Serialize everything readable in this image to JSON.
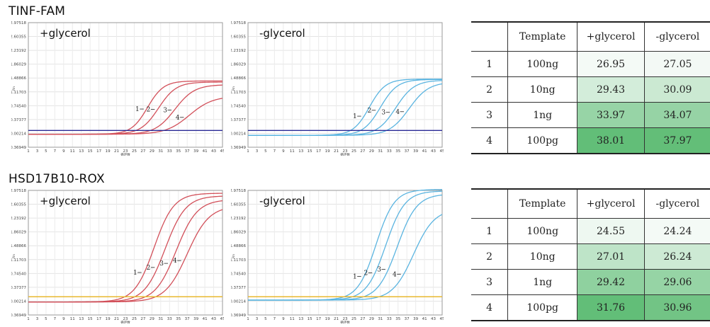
{
  "sections": [
    {
      "title": "TINF-FAM"
    },
    {
      "title": "HSD17B10-ROX"
    }
  ],
  "chart_data": [
    {
      "type": "line",
      "panel": "TINF-FAM +glycerol",
      "label": "+glycerol",
      "curve_color": "#d2505a",
      "threshold_color": "#2a2a96",
      "threshold": 0.08,
      "y_ticks": [
        "2.97518",
        "2.60355",
        "2.23192",
        "1.86029",
        "1.48866",
        "1.11703",
        "0.74540",
        "0.37377",
        "0.00214",
        "-0.36949"
      ],
      "x_ticks": [
        "1",
        "3",
        "5",
        "7",
        "9",
        "11",
        "13",
        "15",
        "17",
        "19",
        "21",
        "23",
        "25",
        "27",
        "29",
        "31",
        "33",
        "35",
        "37",
        "39",
        "41",
        "43",
        "45"
      ],
      "xlabel": "循环数",
      "ylabel": "Rn",
      "xlim": [
        1,
        45
      ],
      "ylim": [
        -0.36949,
        2.97518
      ],
      "series": [
        {
          "label": "1",
          "ct": 26.95,
          "baseline": -0.02,
          "plateau": 1.43,
          "k": 0.55,
          "mid": 28.0,
          "label_x": 26.5
        },
        {
          "label": "2",
          "ct": 29.43,
          "baseline": -0.02,
          "plateau": 1.4,
          "k": 0.5,
          "mid": 30.5,
          "label_x": 29.0
        },
        {
          "label": "3",
          "ct": 33.97,
          "baseline": -0.02,
          "plateau": 1.33,
          "k": 0.45,
          "mid": 34.2,
          "label_x": 32.8
        },
        {
          "label": "4",
          "ct": 38.01,
          "baseline": -0.02,
          "plateau": 1.02,
          "k": 0.38,
          "mid": 37.5,
          "label_x": 35.6
        }
      ]
    },
    {
      "type": "line",
      "panel": "TINF-FAM -glycerol",
      "label": "-glycerol",
      "curve_color": "#5ab4e0",
      "threshold_color": "#2a2a96",
      "threshold": 0.08,
      "y_ticks": [
        "2.97518",
        "2.60355",
        "2.23192",
        "1.86029",
        "1.48866",
        "1.11703",
        "0.74540",
        "0.37377",
        "0.00214",
        "-0.36949"
      ],
      "x_ticks": [
        "1",
        "3",
        "5",
        "7",
        "9",
        "11",
        "13",
        "15",
        "17",
        "19",
        "21",
        "23",
        "25",
        "27",
        "29",
        "31",
        "33",
        "35",
        "37",
        "39",
        "41",
        "43",
        "45"
      ],
      "xlabel": "循环数",
      "ylabel": "Rn",
      "xlim": [
        1,
        45
      ],
      "ylim": [
        -0.36949,
        2.97518
      ],
      "series": [
        {
          "label": "1",
          "ct": 27.05,
          "baseline": -0.05,
          "plateau": 1.51,
          "k": 0.55,
          "mid": 28.5,
          "label_x": 26.0
        },
        {
          "label": "2",
          "ct": 30.09,
          "baseline": -0.05,
          "plateau": 1.5,
          "k": 0.52,
          "mid": 31.0,
          "label_x": 29.3
        },
        {
          "label": "3",
          "ct": 34.07,
          "baseline": -0.05,
          "plateau": 1.48,
          "k": 0.48,
          "mid": 34.5,
          "label_x": 32.5
        },
        {
          "label": "4",
          "ct": 37.97,
          "baseline": -0.05,
          "plateau": 1.43,
          "k": 0.45,
          "mid": 37.5,
          "label_x": 35.7
        }
      ]
    },
    {
      "type": "line",
      "panel": "HSD17B10-ROX +glycerol",
      "label": "+glycerol",
      "curve_color": "#d2505a",
      "threshold_color": "#e8b830",
      "threshold": 0.12,
      "y_ticks": [
        "2.97518",
        "2.60355",
        "2.23192",
        "1.86029",
        "1.48866",
        "1.11703",
        "0.74540",
        "0.37377",
        "0.00214",
        "-0.36949"
      ],
      "x_ticks": [
        "1",
        "3",
        "5",
        "7",
        "9",
        "11",
        "13",
        "15",
        "17",
        "19",
        "21",
        "23",
        "25",
        "27",
        "29",
        "31",
        "33",
        "35",
        "37",
        "39",
        "41",
        "43",
        "45"
      ],
      "xlabel": "循环数",
      "ylabel": "Rn",
      "xlim": [
        1,
        45
      ],
      "ylim": [
        -0.36949,
        2.97518
      ],
      "series": [
        {
          "label": "1",
          "ct": 24.55,
          "baseline": -0.02,
          "plateau": 2.92,
          "k": 0.45,
          "mid": 29.5,
          "label_x": 26.0
        },
        {
          "label": "2",
          "ct": 27.01,
          "baseline": -0.02,
          "plateau": 2.85,
          "k": 0.43,
          "mid": 32.0,
          "label_x": 29.0
        },
        {
          "label": "3",
          "ct": 29.42,
          "baseline": -0.02,
          "plateau": 2.75,
          "k": 0.42,
          "mid": 34.5,
          "label_x": 32.0
        },
        {
          "label": "4",
          "ct": 31.76,
          "baseline": -0.02,
          "plateau": 2.58,
          "k": 0.4,
          "mid": 37.0,
          "label_x": 35.0
        }
      ]
    },
    {
      "type": "line",
      "panel": "HSD17B10-ROX -glycerol",
      "label": "-glycerol",
      "curve_color": "#5ab4e0",
      "threshold_color": "#e8b830",
      "threshold": 0.12,
      "y_ticks": [
        "2.97518",
        "2.60355",
        "2.23192",
        "1.86029",
        "1.48866",
        "1.11703",
        "0.74540",
        "0.37377",
        "0.00214",
        "-0.36949"
      ],
      "x_ticks": [
        "1",
        "3",
        "5",
        "7",
        "9",
        "11",
        "13",
        "15",
        "17",
        "19",
        "21",
        "23",
        "25",
        "27",
        "29",
        "31",
        "33",
        "35",
        "37",
        "39",
        "41",
        "43",
        "45"
      ],
      "xlabel": "循环数",
      "ylabel": "Rn",
      "xlim": [
        1,
        45
      ],
      "ylim": [
        -0.36949,
        2.97518
      ],
      "series": [
        {
          "label": "1",
          "ct": 24.24,
          "baseline": 0.03,
          "plateau": 2.97,
          "k": 0.48,
          "mid": 30.0,
          "label_x": 26.0
        },
        {
          "label": "2",
          "ct": 26.24,
          "baseline": 0.03,
          "plateau": 2.93,
          "k": 0.46,
          "mid": 32.2,
          "label_x": 28.5
        },
        {
          "label": "3",
          "ct": 29.06,
          "baseline": 0.03,
          "plateau": 2.85,
          "k": 0.45,
          "mid": 34.8,
          "label_x": 31.5
        },
        {
          "label": "4",
          "ct": 30.96,
          "baseline": 0.03,
          "plateau": 2.45,
          "k": 0.42,
          "mid": 38.5,
          "label_x": 35.0
        }
      ]
    },
    {
      "type": "table",
      "panel": "TINF-FAM Ct table",
      "headers": [
        "",
        "Template",
        "+glycerol",
        "-glycerol"
      ],
      "rows": [
        [
          "1",
          "100ng",
          "26.95",
          "27.05"
        ],
        [
          "2",
          "10ng",
          "29.43",
          "30.09"
        ],
        [
          "3",
          "1ng",
          "33.97",
          "34.07"
        ],
        [
          "4",
          "100pg",
          "38.01",
          "37.97"
        ]
      ],
      "min": 26.95,
      "max": 38.01
    },
    {
      "type": "table",
      "panel": "HSD17B10-ROX Ct table",
      "headers": [
        "",
        "Template",
        "+glycerol",
        "-glycerol"
      ],
      "rows": [
        [
          "1",
          "100ng",
          "24.55",
          "24.24"
        ],
        [
          "2",
          "10ng",
          "27.01",
          "26.24"
        ],
        [
          "3",
          "1ng",
          "29.42",
          "29.06"
        ],
        [
          "4",
          "100pg",
          "31.76",
          "30.96"
        ]
      ],
      "min": 24.24,
      "max": 31.76
    }
  ]
}
